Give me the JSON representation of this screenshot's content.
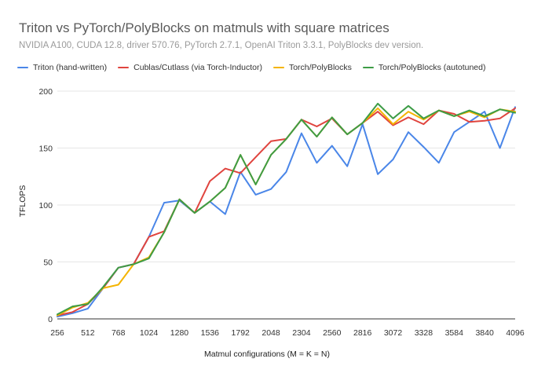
{
  "colors": {
    "triton": "#4a86e8",
    "cublas": "#e0443e",
    "polyblocks": "#f4b400",
    "autotuned": "#3d9c46",
    "grid": "#e6e6e6",
    "axis": "#333333"
  },
  "chart_data": {
    "type": "line",
    "title": "Triton vs PyTorch/PolyBlocks on matmuls with square matrices",
    "subtitle": "NVIDIA A100, CUDA 12.8, driver 570.76, PyTorch 2.7.1, OpenAI Triton 3.3.1, PolyBlocks dev version.",
    "xlabel": "Matmul configurations (M = K = N)",
    "ylabel": "TFLOPS",
    "ylim": [
      0,
      200
    ],
    "yticks": [
      "0",
      "50",
      "100",
      "150",
      "200"
    ],
    "xlim": [
      256,
      4096
    ],
    "xticks": [
      "256",
      "512",
      "768",
      "1024",
      "1280",
      "1536",
      "1792",
      "2048",
      "2304",
      "2560",
      "2816",
      "3072",
      "3328",
      "3584",
      "3840",
      "4096"
    ],
    "grid": true,
    "legend_position": "top",
    "x": [
      256,
      384,
      512,
      640,
      768,
      896,
      1024,
      1152,
      1280,
      1408,
      1536,
      1664,
      1792,
      1920,
      2048,
      2176,
      2304,
      2432,
      2560,
      2688,
      2816,
      2944,
      3072,
      3200,
      3328,
      3456,
      3584,
      3712,
      3840,
      3968,
      4096
    ],
    "series": [
      {
        "name": "Triton (hand-written)",
        "color_key": "triton",
        "values": [
          2,
          5,
          9,
          27,
          45,
          48,
          72,
          102,
          104,
          93,
          103,
          92,
          129,
          109,
          114,
          129,
          163,
          137,
          152,
          134,
          171,
          127,
          140,
          164,
          151,
          137,
          164,
          173,
          182,
          150,
          186
        ]
      },
      {
        "name": "Cublas/Cutlass (via Torch-Inductor)",
        "color_key": "cublas",
        "values": [
          3,
          6,
          13,
          27,
          45,
          48,
          72,
          77,
          105,
          93,
          121,
          132,
          128,
          142,
          156,
          158,
          175,
          169,
          176,
          162,
          172,
          182,
          170,
          177,
          171,
          183,
          180,
          173,
          174,
          176,
          185
        ]
      },
      {
        "name": "Torch/PolyBlocks",
        "color_key": "polyblocks",
        "values": [
          3,
          10,
          14,
          27,
          30,
          48,
          54,
          76,
          105,
          93,
          103,
          115,
          144,
          118,
          144,
          158,
          175,
          160,
          177,
          162,
          172,
          185,
          171,
          182,
          175,
          183,
          178,
          182,
          177,
          184,
          182
        ]
      },
      {
        "name": "Torch/PolyBlocks (autotuned)",
        "color_key": "autotuned",
        "values": [
          4,
          11,
          13,
          28,
          45,
          48,
          53,
          76,
          105,
          93,
          103,
          115,
          144,
          118,
          144,
          158,
          175,
          160,
          177,
          162,
          172,
          189,
          176,
          187,
          176,
          183,
          178,
          183,
          178,
          184,
          181
        ]
      }
    ]
  }
}
